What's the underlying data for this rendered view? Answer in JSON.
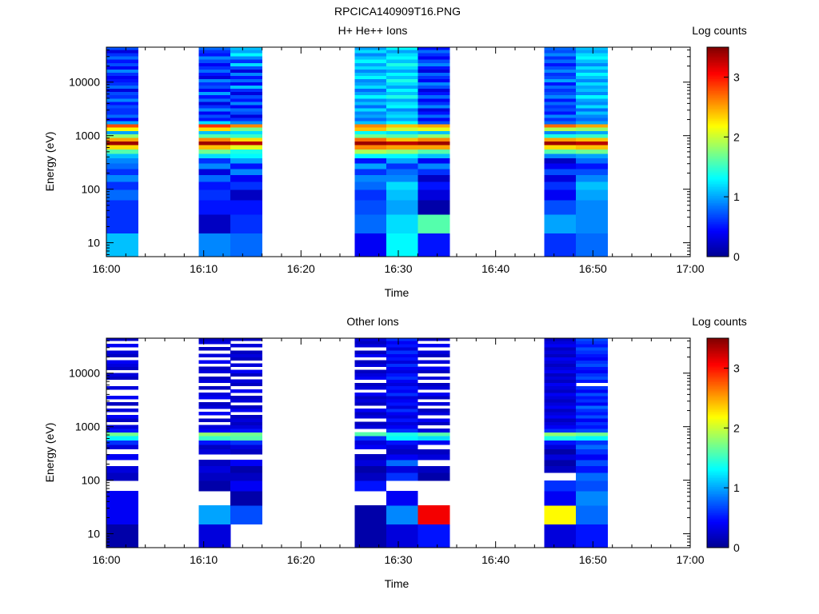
{
  "figure_title": "RPCICA140909T16.PNG",
  "colormap": [
    "#00008f",
    "#0000ff",
    "#0080ff",
    "#00ffff",
    "#80ff80",
    "#ffff00",
    "#ff8000",
    "#ff0000",
    "#800000"
  ],
  "chart_data": [
    {
      "type": "heatmap",
      "title": "H+ He++ Ions",
      "xlabel": "Time",
      "ylabel": "Energy (eV)",
      "x_ticks": [
        "16:00",
        "16:10",
        "16:20",
        "16:30",
        "16:40",
        "16:50",
        "17:00"
      ],
      "xlim": [
        "16:00",
        "17:00"
      ],
      "y_scale": "log",
      "y_ticks": [
        "10",
        "100",
        "1000",
        "10000"
      ],
      "ylim": [
        5.5,
        45000
      ],
      "colorbar": {
        "label": "Log counts",
        "range": [
          0,
          3.5
        ],
        "ticks": [
          "0",
          "1",
          "2",
          "3"
        ]
      },
      "energy_bin_edges": [
        5.5,
        15,
        34,
        63,
        98,
        140,
        185,
        240,
        305,
        380,
        465,
        560,
        670,
        790,
        920,
        1070,
        1240,
        1430,
        1650,
        1900,
        2180,
        2500,
        2870,
        3300,
        3800,
        4350,
        5000,
        5750,
        6600,
        7600,
        8700,
        10000,
        11500,
        13200,
        15200,
        17500,
        20100,
        23100,
        26600,
        30600,
        35200,
        40500,
        45000
      ],
      "columns": [
        {
          "t0": "16:00:00",
          "t1": "16:03:15",
          "log_counts": [
            1.1,
            0.6,
            0.6,
            0.8,
            0.6,
            0.9,
            0.6,
            0.8,
            0.9,
            1.1,
            1.6,
            2.3,
            3.4,
            2.5,
            1.8,
            1.0,
            2.2,
            2.8,
            1.0,
            0.4,
            0.8,
            0.6,
            0.6,
            0.7,
            0.5,
            0.9,
            0.6,
            0.7,
            0.3,
            0.8,
            0.6,
            0.5,
            0.4,
            0.6,
            0.9,
            0.4,
            0.7,
            0.5,
            0.8,
            0.6,
            0.3,
            0.7
          ]
        },
        {
          "t0": "16:09:30",
          "t1": "16:12:45",
          "log_counts": [
            0.9,
            0.2,
            0.5,
            0.6,
            0.5,
            0.8,
            0.3,
            0.9,
            0.6,
            1.2,
            1.7,
            2.4,
            3.4,
            2.6,
            1.6,
            1.1,
            2.3,
            2.9,
            1.2,
            0.5,
            0.7,
            0.4,
            0.9,
            0.6,
            0.3,
            0.8,
            0.5,
            1.0,
            0.4,
            0.7,
            0.6,
            0.9,
            0.3,
            0.5,
            0.8,
            0.6,
            0.4,
            0.7,
            0.9,
            0.5,
            0.6,
            0.8
          ]
        },
        {
          "t0": "16:12:45",
          "t1": "16:16:00",
          "log_counts": [
            0.8,
            0.6,
            0.5,
            0.2,
            0.6,
            0.4,
            0.9,
            0.5,
            1.0,
            1.3,
            1.4,
            2.1,
            3.3,
            2.3,
            1.5,
            1.2,
            1.7,
            2.6,
            0.9,
            0.6,
            0.3,
            0.7,
            0.8,
            0.4,
            0.9,
            0.5,
            0.7,
            0.3,
            0.6,
            1.1,
            0.4,
            0.8,
            0.5,
            0.9,
            0.3,
            0.7,
            1.2,
            0.6,
            0.9,
            1.3,
            1.0,
            1.1
          ]
        },
        {
          "t0": "16:25:30",
          "t1": "16:28:45",
          "log_counts": [
            0.4,
            0.8,
            0.7,
            0.6,
            0.8,
            0.9,
            0.6,
            1.0,
            0.5,
            1.3,
            1.9,
            2.6,
            3.4,
            2.7,
            1.7,
            1.3,
            2.4,
            2.6,
            1.1,
            0.8,
            1.0,
            0.9,
            1.2,
            0.8,
            1.1,
            0.9,
            1.3,
            1.0,
            0.8,
            1.2,
            1.0,
            0.9,
            1.3,
            1.1,
            0.9,
            1.2,
            1.0,
            1.3,
            1.1,
            0.9,
            1.2,
            1.0
          ]
        },
        {
          "t0": "16:28:45",
          "t1": "16:32:00",
          "log_counts": [
            1.3,
            1.2,
            1.0,
            1.1,
            1.2,
            0.9,
            0.8,
            0.6,
            1.0,
            1.3,
            1.8,
            2.5,
            3.3,
            2.4,
            1.6,
            1.2,
            2.0,
            2.4,
            1.3,
            1.0,
            1.2,
            1.1,
            0.9,
            1.3,
            1.2,
            1.0,
            1.4,
            1.1,
            1.3,
            1.0,
            1.2,
            1.4,
            1.1,
            1.3,
            1.0,
            1.2,
            1.4,
            1.1,
            1.3,
            1.2,
            1.0,
            1.3
          ]
        },
        {
          "t0": "16:32:00",
          "t1": "16:35:15",
          "log_counts": [
            0.5,
            1.6,
            0.1,
            0.3,
            0.5,
            0.2,
            0.6,
            0.9,
            0.4,
            1.1,
            1.6,
            2.5,
            3.4,
            2.6,
            1.8,
            1.1,
            2.1,
            2.5,
            0.7,
            0.4,
            0.8,
            0.5,
            0.3,
            0.9,
            0.6,
            0.4,
            0.8,
            0.5,
            0.3,
            0.7,
            0.9,
            0.4,
            0.6,
            0.8,
            0.3,
            0.5,
            0.9,
            0.7,
            0.4,
            0.6,
            0.8,
            0.5
          ]
        },
        {
          "t0": "16:45:00",
          "t1": "16:48:15",
          "log_counts": [
            0.6,
            1.0,
            0.7,
            0.4,
            0.6,
            0.3,
            0.7,
            0.4,
            0.2,
            0.9,
            1.6,
            2.3,
            3.4,
            2.5,
            1.4,
            0.9,
            1.9,
            2.7,
            0.8,
            0.6,
            0.9,
            0.5,
            0.7,
            0.6,
            0.8,
            0.5,
            0.9,
            0.7,
            0.6,
            0.8,
            0.5,
            1.0,
            0.7,
            0.6,
            0.9,
            0.7,
            0.5,
            0.8,
            0.6,
            0.9,
            0.7,
            0.8
          ]
        },
        {
          "t0": "16:48:15",
          "t1": "16:51:30",
          "log_counts": [
            0.8,
            0.9,
            0.9,
            1.0,
            1.1,
            0.9,
            0.7,
            0.5,
            0.8,
            1.0,
            1.7,
            2.4,
            3.3,
            2.4,
            1.5,
            1.0,
            1.8,
            2.5,
            1.0,
            0.8,
            0.9,
            1.1,
            0.8,
            1.2,
            0.9,
            1.0,
            1.3,
            0.9,
            1.1,
            1.0,
            1.2,
            0.9,
            1.1,
            1.3,
            1.0,
            1.2,
            0.9,
            1.1,
            1.3,
            1.2,
            1.0,
            1.1
          ]
        }
      ]
    },
    {
      "type": "heatmap",
      "title": "Other Ions",
      "xlabel": "Time",
      "ylabel": "Energy (eV)",
      "x_ticks": [
        "16:00",
        "16:10",
        "16:20",
        "16:30",
        "16:40",
        "16:50",
        "17:00"
      ],
      "xlim": [
        "16:00",
        "17:00"
      ],
      "y_scale": "log",
      "y_ticks": [
        "10",
        "100",
        "1000",
        "10000"
      ],
      "ylim": [
        5.5,
        45000
      ],
      "colorbar": {
        "label": "Log counts",
        "range": [
          0,
          3.5
        ],
        "ticks": [
          "0",
          "1",
          "2",
          "3"
        ]
      },
      "energy_bin_edges": [
        5.5,
        15,
        34,
        63,
        98,
        140,
        185,
        240,
        305,
        380,
        465,
        560,
        670,
        790,
        920,
        1070,
        1240,
        1430,
        1650,
        1900,
        2180,
        2500,
        2870,
        3300,
        3800,
        4350,
        5000,
        5750,
        6600,
        7600,
        8700,
        10000,
        11500,
        13200,
        15200,
        17500,
        20100,
        23100,
        26600,
        30600,
        35200,
        40500,
        45000
      ],
      "columns": [
        {
          "t0": "16:00:00",
          "t1": "16:03:15",
          "log_counts": [
            0.1,
            0.4,
            0.4,
            null,
            0.2,
            0.3,
            null,
            0.4,
            null,
            0.3,
            0.6,
            1.3,
            1.7,
            0.5,
            0.3,
            null,
            0.2,
            0.4,
            null,
            0.3,
            null,
            0.2,
            null,
            0.4,
            null,
            null,
            0.3,
            null,
            null,
            0.2,
            0.3,
            null,
            0.2,
            0.3,
            0.4,
            null,
            0.2,
            0.3,
            null,
            0.4,
            null,
            0.2
          ]
        },
        {
          "t0": "16:09:30",
          "t1": "16:12:45",
          "log_counts": [
            0.3,
            1.0,
            null,
            0.1,
            0.2,
            0.3,
            0.2,
            null,
            0.3,
            0.2,
            0.5,
            1.5,
            1.8,
            0.4,
            0.3,
            null,
            0.2,
            null,
            0.4,
            null,
            0.3,
            0.2,
            null,
            0.4,
            0.3,
            null,
            0.2,
            null,
            0.3,
            0.2,
            null,
            0.3,
            0.2,
            null,
            0.4,
            null,
            0.3,
            null,
            0.2,
            null,
            0.3,
            0.2
          ]
        },
        {
          "t0": "16:12:45",
          "t1": "16:16:00",
          "log_counts": [
            null,
            0.7,
            0.1,
            0.4,
            0.2,
            0.1,
            0.4,
            null,
            0.2,
            0.3,
            0.6,
            1.6,
            1.7,
            0.5,
            0.3,
            0.2,
            0.3,
            0.2,
            null,
            0.4,
            0.2,
            null,
            0.3,
            0.2,
            null,
            0.4,
            null,
            0.2,
            0.3,
            null,
            0.2,
            0.4,
            null,
            0.3,
            null,
            0.2,
            0.3,
            0.2,
            null,
            0.3,
            null,
            0.2
          ]
        },
        {
          "t0": "16:25:30",
          "t1": "16:28:45",
          "log_counts": [
            0.1,
            0.1,
            null,
            0.5,
            0.2,
            0.1,
            0.3,
            0.2,
            null,
            0.4,
            0.3,
            0.6,
            1.6,
            null,
            0.3,
            0.2,
            null,
            0.3,
            0.2,
            0.4,
            null,
            0.2,
            0.3,
            0.2,
            0.4,
            null,
            0.3,
            0.2,
            null,
            0.4,
            0.3,
            0.2,
            null,
            0.3,
            0.2,
            null,
            0.4,
            0.2,
            null,
            0.3,
            0.2,
            0.3
          ]
        },
        {
          "t0": "16:28:45",
          "t1": "16:32:00",
          "log_counts": [
            0.3,
            0.9,
            0.4,
            null,
            0.6,
            0.3,
            0.8,
            0.4,
            0.2,
            0.3,
            0.5,
            1.3,
            1.4,
            0.6,
            0.4,
            0.3,
            0.5,
            0.3,
            0.4,
            0.6,
            0.3,
            0.5,
            0.4,
            0.3,
            0.6,
            0.4,
            0.5,
            0.3,
            0.4,
            0.6,
            0.5,
            0.3,
            0.4,
            0.6,
            0.3,
            0.5,
            0.4,
            0.6,
            0.3,
            0.5,
            0.4,
            0.6
          ]
        },
        {
          "t0": "16:32:00",
          "t1": "16:35:15",
          "log_counts": [
            0.5,
            3.1,
            null,
            null,
            0.1,
            0.2,
            null,
            0.3,
            0.2,
            null,
            0.4,
            1.2,
            1.6,
            0.3,
            null,
            0.2,
            0.4,
            null,
            0.3,
            0.2,
            null,
            0.3,
            null,
            0.2,
            0.4,
            null,
            0.3,
            0.2,
            null,
            0.3,
            null,
            0.2,
            0.4,
            null,
            0.3,
            null,
            0.2,
            0.3,
            null,
            0.4,
            null,
            0.2
          ]
        },
        {
          "t0": "16:45:00",
          "t1": "16:48:15",
          "log_counts": [
            0.3,
            2.2,
            0.4,
            0.6,
            null,
            0.2,
            0.1,
            0.3,
            0.1,
            0.3,
            0.5,
            1.4,
            1.8,
            0.6,
            0.4,
            0.3,
            0.2,
            0.4,
            0.3,
            0.2,
            0.4,
            0.3,
            0.2,
            0.3,
            0.4,
            0.2,
            0.3,
            0.4,
            0.2,
            0.3,
            0.2,
            0.4,
            0.3,
            0.2,
            0.3,
            0.4,
            0.2,
            0.3,
            0.2,
            0.4,
            0.3,
            0.2
          ]
        },
        {
          "t0": "16:48:15",
          "t1": "16:51:30",
          "log_counts": [
            0.5,
            0.8,
            0.9,
            0.7,
            0.8,
            0.5,
            0.7,
            0.4,
            0.6,
            0.8,
            0.6,
            1.3,
            1.7,
            0.7,
            0.5,
            0.6,
            0.4,
            0.7,
            0.5,
            0.6,
            0.8,
            0.4,
            0.6,
            0.5,
            0.7,
            0.4,
            0.6,
            null,
            0.5,
            0.7,
            0.6,
            0.4,
            0.5,
            0.7,
            0.6,
            0.4,
            0.5,
            0.6,
            0.7,
            0.5,
            0.6,
            0.7
          ]
        }
      ]
    }
  ]
}
